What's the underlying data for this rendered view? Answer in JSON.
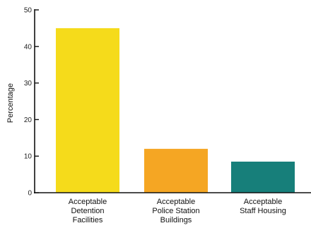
{
  "chart_data": {
    "type": "bar",
    "title": "",
    "xlabel": "",
    "ylabel": "Percentage",
    "ylim": [
      0,
      50
    ],
    "yticks": [
      0,
      10,
      20,
      30,
      40,
      50
    ],
    "grid": false,
    "categories": [
      [
        "Acceptable",
        "Detention",
        "Facilities"
      ],
      [
        "Acceptable",
        "Police Station",
        "Buildings"
      ],
      [
        "Acceptable",
        "Staff Housing"
      ]
    ],
    "values": [
      45,
      12,
      8.5
    ],
    "colors": [
      "#F5DB1B",
      "#F5A623",
      "#177F7A"
    ]
  }
}
